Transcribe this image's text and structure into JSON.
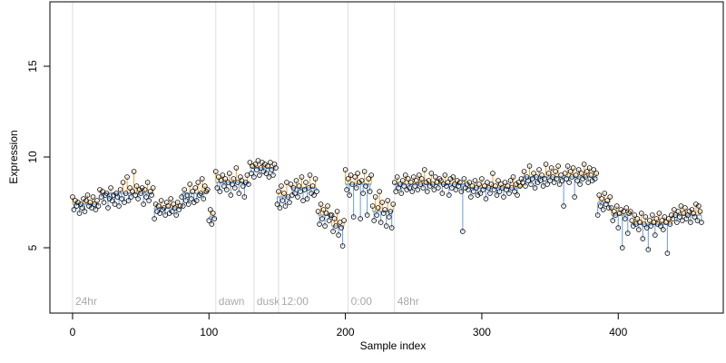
{
  "chart_data": {
    "type": "scatter",
    "xlabel": "Sample index",
    "ylabel": "Expression",
    "xlim": [
      -16.6,
      477
    ],
    "ylim": [
      1.4,
      18.55
    ],
    "xticks": [
      0,
      100,
      200,
      300,
      400
    ],
    "yticks": [
      5,
      10,
      15
    ],
    "point_color": "#000000",
    "above_color": "#f0a030",
    "below_color": "#6a9bd8",
    "annotation_color": "#aaaaaa",
    "annotations": [
      {
        "x": 0,
        "label": "24hr"
      },
      {
        "x": 105,
        "label": "dawn"
      },
      {
        "x": 133,
        "label": "dusk"
      },
      {
        "x": 151,
        "label": "12:00"
      },
      {
        "x": 202,
        "label": "0:00"
      },
      {
        "x": 236,
        "label": "48hr"
      }
    ],
    "segments": [
      {
        "start": 0,
        "end": 19,
        "value": 7.4
      },
      {
        "start": 20,
        "end": 59,
        "value": 8.0
      },
      {
        "start": 60,
        "end": 79,
        "value": 7.2
      },
      {
        "start": 80,
        "end": 99,
        "value": 8.0
      },
      {
        "start": 100,
        "end": 104,
        "value": 6.7
      },
      {
        "start": 105,
        "end": 129,
        "value": 8.6
      },
      {
        "start": 130,
        "end": 149,
        "value": 9.4
      },
      {
        "start": 150,
        "end": 159,
        "value": 7.8
      },
      {
        "start": 160,
        "end": 179,
        "value": 8.3
      },
      {
        "start": 180,
        "end": 189,
        "value": 6.8
      },
      {
        "start": 190,
        "end": 199,
        "value": 6.2
      },
      {
        "start": 200,
        "end": 219,
        "value": 8.5
      },
      {
        "start": 220,
        "end": 235,
        "value": 7.0
      },
      {
        "start": 236,
        "end": 249,
        "value": 8.5
      },
      {
        "start": 250,
        "end": 289,
        "value": 8.5
      },
      {
        "start": 290,
        "end": 329,
        "value": 8.3
      },
      {
        "start": 330,
        "end": 359,
        "value": 8.9
      },
      {
        "start": 360,
        "end": 384,
        "value": 8.9
      },
      {
        "start": 385,
        "end": 394,
        "value": 7.5
      },
      {
        "start": 395,
        "end": 409,
        "value": 6.8
      },
      {
        "start": 410,
        "end": 439,
        "value": 6.3
      },
      {
        "start": 440,
        "end": 461,
        "value": 6.8
      }
    ],
    "values": [
      7.8,
      7.1,
      7.6,
      7.3,
      7.5,
      6.9,
      7.4,
      7.2,
      7.7,
      7.0,
      7.6,
      7.9,
      7.3,
      7.5,
      7.2,
      7.8,
      7.4,
      7.1,
      7.6,
      7.3,
      8.2,
      7.8,
      8.1,
      7.5,
      7.9,
      8.0,
      7.2,
      7.7,
      8.3,
      7.6,
      7.9,
      7.4,
      8.0,
      7.8,
      7.3,
      8.2,
      7.7,
      8.6,
      7.5,
      8.0,
      8.9,
      7.6,
      8.3,
      7.8,
      8.1,
      9.2,
      7.9,
      8.4,
      7.7,
      8.2,
      8.0,
      8.3,
      7.4,
      8.2,
      7.8,
      8.6,
      7.6,
      8.1,
      7.9,
      8.3,
      6.6,
      7.4,
      7.0,
      7.3,
      6.9,
      7.6,
      7.1,
      7.2,
      6.8,
      7.5,
      7.3,
      6.9,
      7.7,
      7.0,
      7.4,
      7.2,
      6.8,
      7.5,
      7.1,
      7.3,
      7.8,
      7.3,
      8.2,
      7.6,
      7.9,
      7.4,
      8.5,
      7.7,
      8.1,
      7.5,
      8.3,
      7.6,
      8.6,
      7.9,
      8.0,
      8.8,
      7.7,
      8.4,
      8.1,
      8.2,
      6.5,
      7.1,
      6.3,
      6.9,
      6.6,
      9.2,
      8.3,
      8.9,
      8.1,
      8.7,
      9.0,
      8.4,
      8.8,
      8.2,
      8.6,
      9.1,
      7.9,
      8.5,
      8.8,
      8.3,
      9.4,
      8.6,
      8.0,
      8.9,
      8.7,
      8.4,
      7.8,
      8.6,
      9.0,
      8.5,
      9.7,
      9.1,
      9.5,
      8.9,
      9.6,
      9.3,
      9.8,
      9.0,
      9.4,
      9.7,
      9.2,
      9.6,
      9.1,
      9.5,
      8.9,
      9.7,
      9.3,
      9.0,
      9.6,
      9.4,
      7.4,
      8.1,
      7.2,
      8.4,
      7.6,
      8.0,
      7.3,
      8.6,
      7.8,
      7.5,
      8.5,
      7.9,
      8.3,
      8.0,
      8.7,
      7.8,
      8.4,
      8.1,
      8.9,
      7.6,
      8.2,
      8.6,
      7.7,
      8.3,
      9.0,
      8.0,
      8.4,
      7.9,
      8.8,
      8.1,
      7.0,
      6.3,
      7.4,
      6.6,
      7.1,
      6.2,
      6.9,
      7.3,
      6.5,
      6.8,
      6.8,
      5.9,
      6.6,
      6.2,
      7.0,
      5.7,
      6.4,
      6.1,
      5.1,
      6.5,
      9.3,
      8.2,
      8.8,
      7.9,
      9.0,
      8.5,
      6.7,
      8.9,
      8.3,
      9.1,
      8.6,
      6.6,
      8.7,
      8.0,
      9.2,
      8.4,
      6.8,
      8.8,
      8.1,
      9.0,
      7.3,
      6.5,
      7.8,
      6.8,
      7.2,
      8.1,
      6.4,
      7.5,
      6.9,
      7.1,
      6.2,
      7.6,
      6.7,
      7.0,
      6.1,
      7.4,
      8.6,
      8.1,
      8.9,
      8.3,
      8.5,
      8.0,
      8.7,
      8.4,
      9.0,
      8.2,
      8.8,
      8.3,
      8.6,
      8.1,
      8.9,
      8.4,
      8.7,
      8.2,
      9.0,
      8.5,
      8.8,
      8.3,
      9.3,
      8.6,
      8.1,
      8.7,
      8.4,
      9.1,
      8.5,
      8.2,
      8.9,
      8.6,
      8.3,
      8.8,
      8.7,
      8.0,
      8.5,
      9.0,
      8.4,
      8.6,
      7.9,
      8.8,
      8.3,
      8.9,
      8.5,
      8.2,
      8.7,
      8.4,
      8.6,
      8.1,
      5.9,
      8.8,
      8.3,
      8.5,
      8.2,
      8.6,
      7.8,
      8.4,
      8.1,
      8.7,
      8.3,
      7.9,
      8.5,
      8.0,
      8.8,
      8.2,
      8.4,
      7.7,
      8.6,
      8.3,
      8.0,
      8.5,
      9.1,
      8.2,
      8.4,
      7.9,
      8.7,
      8.1,
      8.5,
      8.3,
      7.8,
      8.6,
      8.2,
      8.4,
      8.0,
      8.7,
      8.3,
      8.9,
      8.1,
      8.5,
      7.9,
      8.6,
      8.4,
      8.8,
      8.6,
      9.2,
      8.4,
      8.9,
      8.7,
      9.5,
      8.5,
      8.8,
      9.1,
      8.3,
      8.9,
      8.6,
      9.3,
      8.7,
      9.0,
      8.4,
      8.8,
      9.6,
      8.5,
      9.1,
      8.7,
      9.4,
      8.9,
      8.6,
      9.2,
      8.8,
      9.5,
      8.5,
      9.0,
      8.7,
      7.3,
      9.1,
      8.8,
      9.5,
      8.6,
      9.2,
      8.9,
      9.4,
      7.8,
      9.0,
      8.7,
      9.3,
      8.5,
      9.1,
      8.8,
      9.6,
      8.9,
      9.2,
      8.6,
      9.4,
      9.0,
      8.7,
      9.3,
      8.8,
      9.1,
      6.8,
      7.9,
      7.3,
      7.7,
      7.1,
      8.0,
      7.4,
      7.6,
      7.2,
      7.8,
      7.2,
      6.5,
      7.0,
      6.8,
      7.3,
      6.1,
      6.9,
      7.1,
      5.0,
      7.0,
      6.6,
      7.2,
      5.8,
      6.9,
      7.0,
      6.5,
      6.2,
      6.8,
      6.3,
      6.6,
      6.0,
      6.4,
      6.9,
      5.5,
      6.3,
      6.7,
      6.1,
      4.9,
      6.5,
      6.2,
      6.8,
      6.4,
      5.7,
      6.6,
      6.3,
      6.9,
      6.2,
      6.5,
      6.0,
      6.7,
      6.4,
      4.7,
      6.6,
      6.3,
      6.8,
      6.6,
      7.1,
      6.8,
      6.4,
      7.0,
      6.7,
      7.3,
      6.5,
      6.9,
      7.2,
      6.6,
      6.8,
      7.0,
      6.4,
      7.1,
      6.9,
      6.7,
      7.4,
      6.5,
      7.3,
      7.0,
      6.4
    ]
  }
}
